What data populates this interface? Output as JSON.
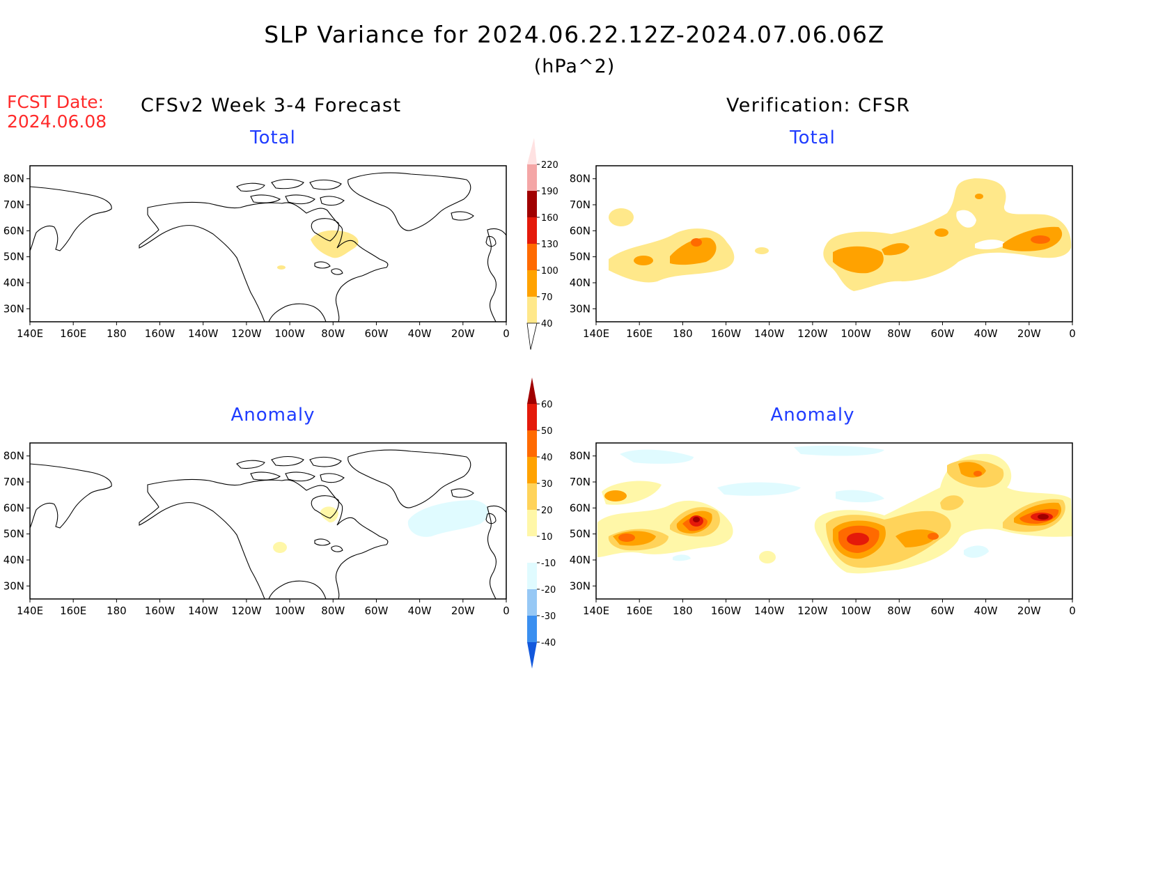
{
  "header": {
    "title": "SLP Variance for 2024.06.22.12Z-2024.07.06.06Z",
    "unit": "(hPa^2)",
    "fcst_label": "FCST Date:",
    "fcst_date": "2024.06.08",
    "left_column": "CFSv2 Week 3-4 Forecast",
    "right_column": "Verification: CFSR"
  },
  "panels": {
    "fc_total": {
      "title": "Total"
    },
    "fc_anom": {
      "title": "Anomaly"
    },
    "ver_total": {
      "title": "Total"
    },
    "ver_anom": {
      "title": "Anomaly"
    }
  },
  "axes": {
    "lon_labels": [
      "140E",
      "160E",
      "180",
      "160W",
      "140W",
      "120W",
      "100W",
      "80W",
      "60W",
      "40W",
      "20W",
      "0"
    ],
    "lat_labels": [
      "80N",
      "70N",
      "60N",
      "50N",
      "40N",
      "30N"
    ],
    "lon_range": [
      140,
      360
    ],
    "lat_range": [
      25,
      85
    ]
  },
  "colorbars": {
    "total": {
      "levels": [
        "40",
        "70",
        "100",
        "130",
        "160",
        "190",
        "220"
      ],
      "colors": [
        "#ffe88a",
        "#ffa200",
        "#ff6a00",
        "#e41a0a",
        "#a00000",
        "#f4a6a6",
        "#ffe2e2"
      ]
    },
    "anomaly": {
      "levels": [
        "-40",
        "-30",
        "-20",
        "-10",
        "10",
        "20",
        "30",
        "40",
        "50",
        "60"
      ],
      "colors": [
        "#1258dc",
        "#3a8ff0",
        "#96c8f5",
        "#e0fbff",
        "#ffffff",
        "#fff7a8",
        "#ffd35a",
        "#ffa200",
        "#ff6a00",
        "#e41a0a",
        "#a00000"
      ]
    }
  }
}
